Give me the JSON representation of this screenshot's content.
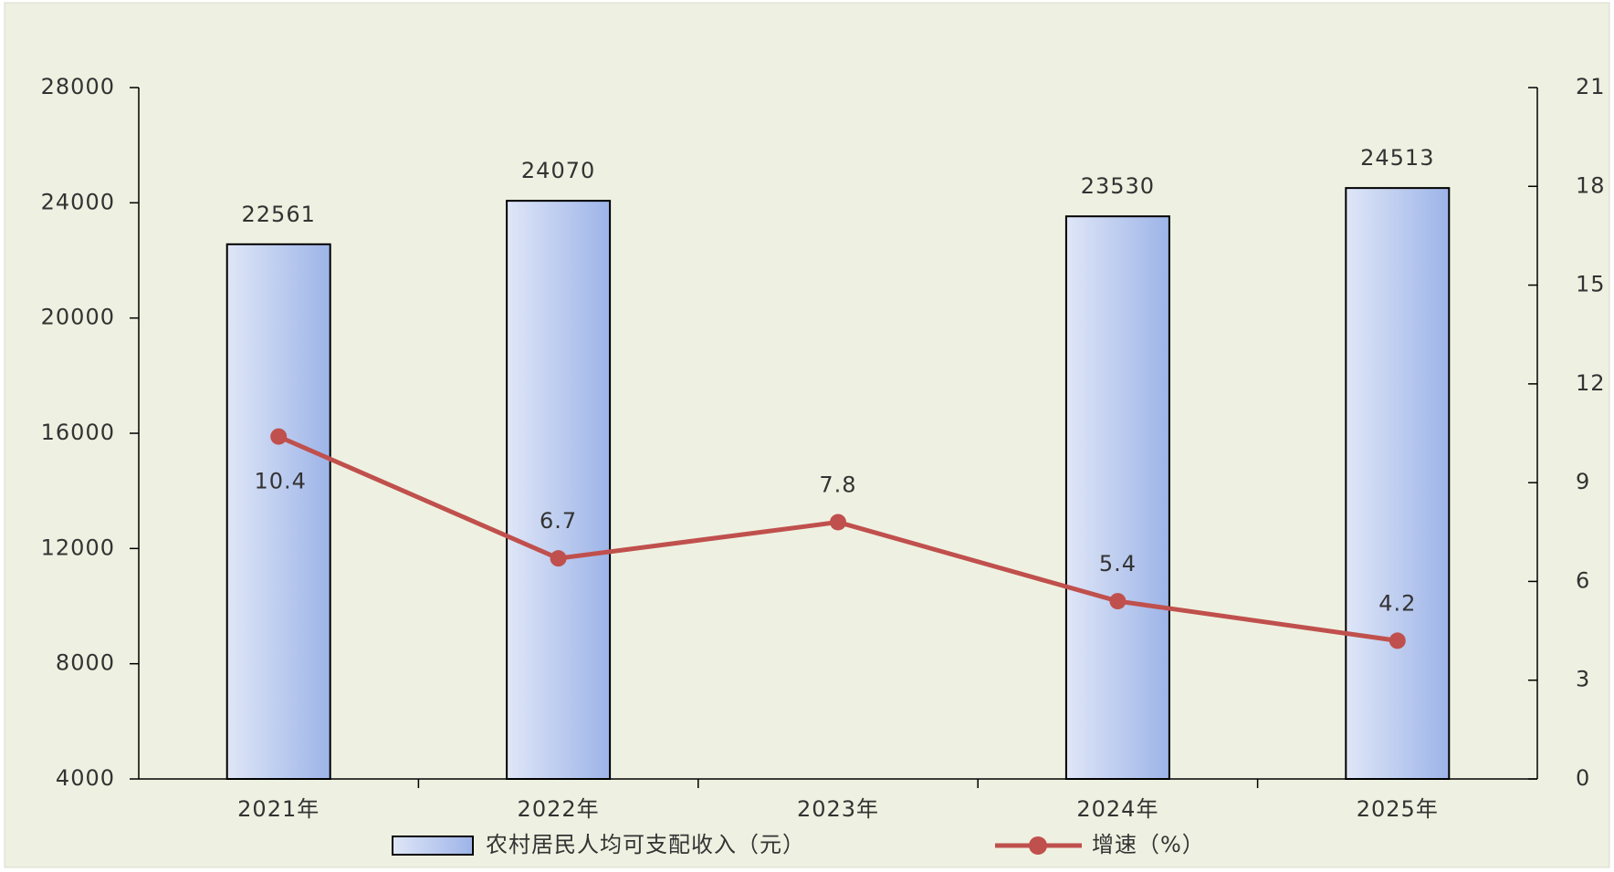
{
  "chart_data": {
    "type": "bar",
    "categories": [
      "2021年",
      "2022年",
      "2023年",
      "2024年",
      "2025年"
    ],
    "series": [
      {
        "name": "农村居民人均可支配收入（元）",
        "type": "bar",
        "color": "#9db4e8",
        "values": [
          22561,
          24070,
          null,
          23530,
          24513
        ]
      },
      {
        "name": "增速（%）",
        "type": "line",
        "color": "#c0504d",
        "axis": "y2",
        "values": [
          10.4,
          6.7,
          7.8,
          5.4,
          4.2
        ]
      }
    ],
    "ylim": [
      4000,
      28000
    ],
    "yticks": [
      4000,
      8000,
      12000,
      16000,
      20000,
      24000,
      28000
    ],
    "y2lim": [
      0,
      21
    ],
    "y2ticks": [
      0,
      3,
      6,
      9,
      12,
      15,
      18,
      21
    ],
    "legend": "bottom"
  }
}
